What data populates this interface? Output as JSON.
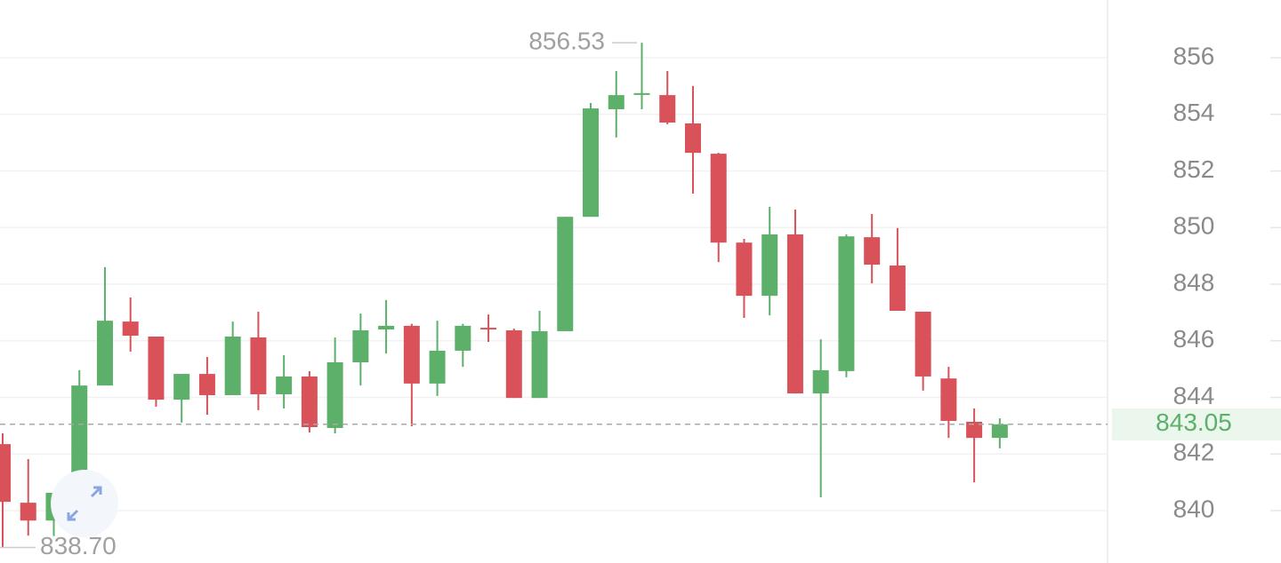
{
  "chart_data": {
    "type": "candlestick",
    "ylim": [
      838.15,
      858.04
    ],
    "yticks": [
      840,
      842,
      844,
      846,
      848,
      850,
      852,
      854,
      856
    ],
    "grid": true,
    "up_color": "#5cb06a",
    "down_color": "#d9525a",
    "series": {
      "open": [
        842.35,
        840.28,
        839.65,
        840.69,
        844.42,
        846.68,
        846.15,
        843.92,
        844.83,
        844.08,
        846.12,
        844.11,
        844.74,
        842.92,
        845.24,
        846.4,
        846.53,
        844.49,
        845.65,
        846.46,
        846.37,
        843.98,
        846.34,
        850.38,
        854.18,
        854.72,
        854.68,
        853.68,
        852.61,
        849.47,
        847.59,
        849.76,
        844.14,
        844.93,
        849.66,
        848.66,
        847.03,
        844.67,
        843.14,
        842.57
      ],
      "high": [
        842.73,
        841.82,
        840.63,
        844.96,
        848.6,
        847.53,
        846.15,
        844.83,
        845.43,
        846.68,
        847.03,
        845.49,
        844.93,
        846.12,
        846.96,
        847.44,
        846.6,
        846.71,
        846.6,
        846.93,
        846.43,
        847.06,
        850.38,
        854.4,
        855.53,
        856.53,
        855.53,
        855.0,
        852.64,
        849.6,
        850.73,
        850.64,
        846.05,
        849.76,
        850.48,
        849.98,
        847.03,
        845.08,
        843.61,
        843.26
      ],
      "low": [
        838.7,
        839.12,
        839.1,
        840.69,
        844.42,
        845.62,
        843.67,
        843.11,
        843.39,
        844.08,
        843.55,
        843.61,
        842.76,
        842.73,
        844.42,
        845.55,
        842.98,
        844.05,
        845.08,
        845.96,
        843.98,
        843.98,
        846.34,
        850.38,
        853.18,
        854.18,
        853.65,
        851.2,
        848.78,
        846.81,
        846.9,
        844.14,
        840.47,
        844.71,
        848.03,
        847.06,
        844.24,
        842.57,
        841.0,
        842.2
      ],
      "close": [
        840.31,
        839.65,
        840.63,
        844.42,
        846.71,
        846.18,
        843.92,
        844.83,
        844.08,
        846.15,
        844.11,
        844.74,
        842.95,
        845.24,
        846.37,
        846.53,
        844.49,
        845.65,
        846.53,
        846.4,
        843.98,
        846.34,
        850.38,
        854.21,
        854.68,
        854.75,
        853.71,
        852.64,
        849.47,
        847.59,
        849.76,
        844.14,
        844.96,
        849.69,
        848.69,
        847.06,
        844.74,
        843.17,
        842.57,
        843.05
      ]
    },
    "high_marker": 856.53,
    "low_marker": {
      "value": 838.7,
      "label": "838.70"
    },
    "last_price": 843.05
  }
}
